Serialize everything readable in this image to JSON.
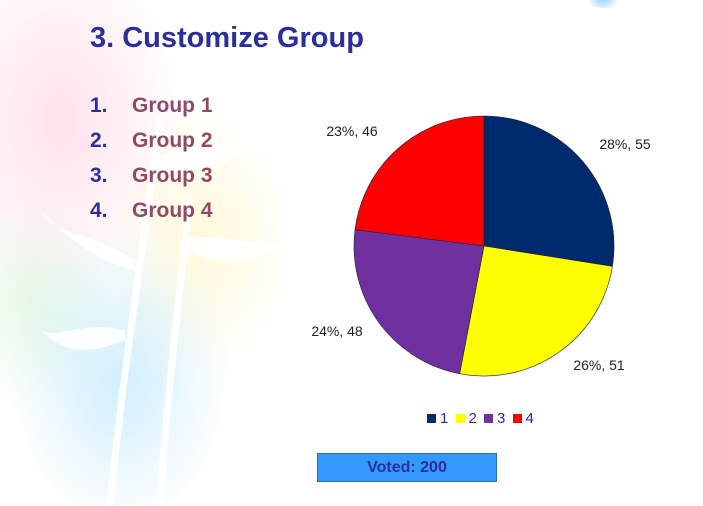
{
  "slide": {
    "title": "3. Customize Group",
    "groups": [
      {
        "number": "1.",
        "label": "Group 1"
      },
      {
        "number": "2.",
        "label": "Group 2"
      },
      {
        "number": "3.",
        "label": "Group 3"
      },
      {
        "number": "4.",
        "label": "Group 4"
      }
    ],
    "voted_text": "Voted: 200"
  },
  "chart_data": {
    "type": "pie",
    "title": "",
    "legend_position": "bottom",
    "categories": [
      "1",
      "2",
      "3",
      "4"
    ],
    "values": [
      55,
      51,
      48,
      46
    ],
    "percent_labels": [
      "28%, 55",
      "26%, 51",
      "24%, 48",
      "23%, 46"
    ],
    "colors": [
      "#002a6e",
      "#ffff00",
      "#7030a0",
      "#ff0000"
    ]
  }
}
